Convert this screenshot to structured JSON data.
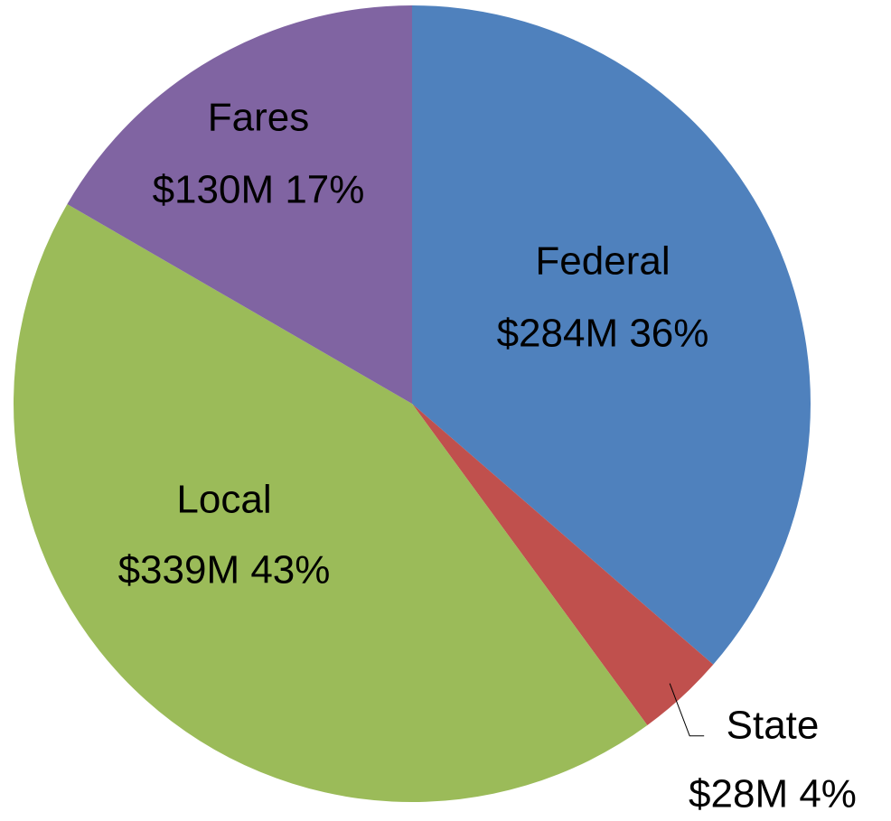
{
  "chart_data": {
    "type": "pie",
    "categories": [
      "Federal",
      "State",
      "Local",
      "Fares"
    ],
    "values": [
      284,
      28,
      339,
      130
    ],
    "value_labels": [
      "$284M 36%",
      "$28M 4%",
      "$339M 43%",
      "$130M 17%"
    ],
    "colors": [
      "#4f81bd",
      "#c0504d",
      "#9bbb59",
      "#8064a2"
    ]
  }
}
